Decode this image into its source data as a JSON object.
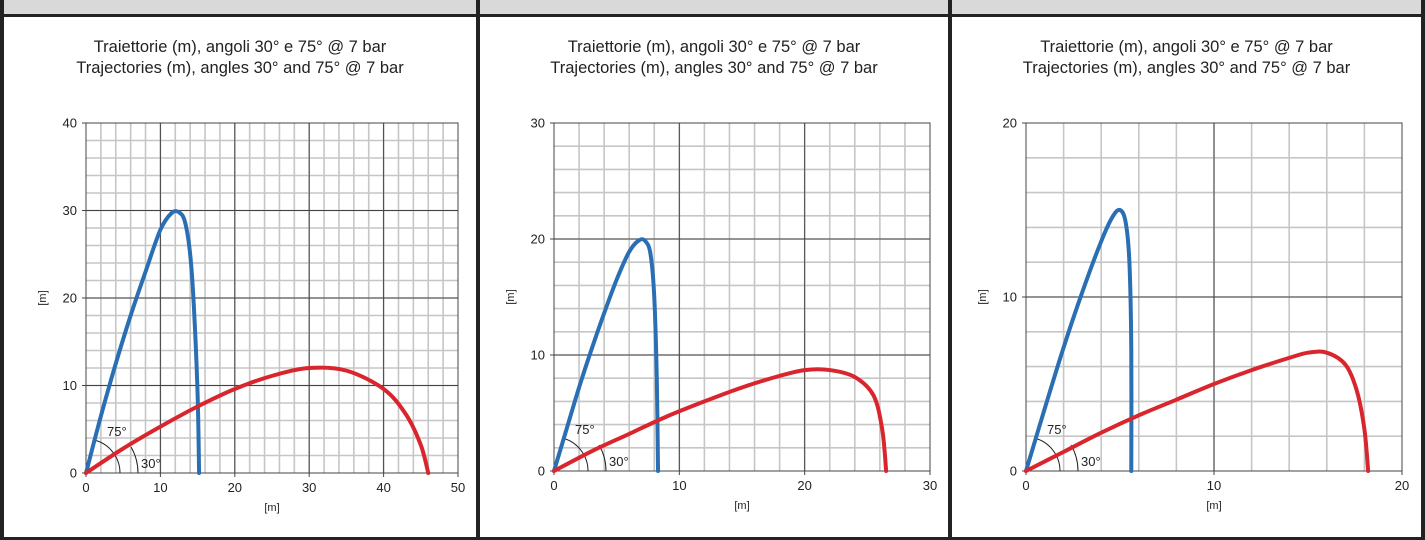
{
  "chart_data": [
    {
      "type": "line",
      "title": "Traiettorie (m), angoli 30° e 75° @ 7 bar",
      "subtitle": "Trajectories (m), angles 30° and 75° @ 7 bar",
      "xlabel": "[m]",
      "ylabel": "[m]",
      "xlim": [
        0,
        50
      ],
      "ylim": [
        0,
        40
      ],
      "xticks": [
        0,
        10,
        20,
        30,
        40,
        50
      ],
      "yticks": [
        0,
        10,
        20,
        30,
        40
      ],
      "minor_grid": [
        2,
        2
      ],
      "legend": "none",
      "angle_labels": [
        "75°",
        "30°"
      ],
      "series": [
        {
          "color": "#2a6fb3",
          "x": [
            0,
            2,
            4,
            6,
            8,
            10,
            11.5,
            12.5,
            13.3,
            14,
            14.5,
            15,
            15.2
          ],
          "y": [
            0,
            6.5,
            12.5,
            18,
            23,
            27.8,
            29.7,
            29.8,
            28.7,
            25,
            19,
            9,
            0
          ]
        },
        {
          "color": "#d9262e",
          "x": [
            0,
            5,
            10,
            15,
            20,
            25,
            30,
            35,
            40,
            43,
            45,
            46
          ],
          "y": [
            0,
            2.8,
            5.3,
            7.6,
            9.6,
            11.1,
            12,
            11.7,
            9.6,
            6.7,
            3.2,
            0
          ]
        }
      ]
    },
    {
      "type": "line",
      "title": "Traiettorie (m), angoli 30° e 75° @ 7 bar",
      "subtitle": "Trajectories (m), angles 30° and 75° @ 7 bar",
      "xlabel": "[m]",
      "ylabel": "[m]",
      "xlim": [
        0,
        30
      ],
      "ylim": [
        0,
        30
      ],
      "xticks": [
        0,
        10,
        20,
        30
      ],
      "yticks": [
        0,
        10,
        20,
        30
      ],
      "minor_grid": [
        2,
        2
      ],
      "legend": "none",
      "angle_labels": [
        "75°",
        "30°"
      ],
      "series": [
        {
          "color": "#2a6fb3",
          "x": [
            0,
            1,
            2,
            3,
            4,
            5,
            6,
            6.8,
            7.3,
            7.7,
            8,
            8.2,
            8.3
          ],
          "y": [
            0,
            3.6,
            7.2,
            10.5,
            13.6,
            16.5,
            18.9,
            19.9,
            19.8,
            18.7,
            15,
            8,
            0
          ]
        },
        {
          "color": "#d9262e",
          "x": [
            0,
            3,
            6,
            9,
            12,
            15,
            18,
            20,
            22,
            24,
            25.5,
            26.2,
            26.5
          ],
          "y": [
            0,
            1.7,
            3.2,
            4.7,
            6.0,
            7.2,
            8.2,
            8.7,
            8.7,
            8.1,
            6.5,
            3.5,
            0
          ]
        }
      ]
    },
    {
      "type": "line",
      "title": "Traiettorie (m), angoli 30° e 75° @ 7 bar",
      "subtitle": "Trajectories (m), angles 30° and 75° @ 7 bar",
      "xlabel": "[m]",
      "ylabel": "[m]",
      "xlim": [
        0,
        20
      ],
      "ylim": [
        0,
        20
      ],
      "xticks": [
        0,
        10,
        20
      ],
      "yticks": [
        0,
        10,
        20
      ],
      "minor_grid": [
        2,
        2
      ],
      "legend": "none",
      "angle_labels": [
        "75°",
        "30°"
      ],
      "series": [
        {
          "color": "#2a6fb3",
          "x": [
            0,
            1,
            2,
            3,
            4,
            4.6,
            5,
            5.3,
            5.5,
            5.6,
            5.6
          ],
          "y": [
            0,
            3.6,
            7.1,
            10.3,
            13.2,
            14.6,
            15.0,
            14.3,
            12,
            7,
            0
          ]
        },
        {
          "color": "#d9262e",
          "x": [
            0,
            2,
            4,
            6,
            8,
            10,
            12,
            14,
            15,
            16,
            17,
            17.6,
            18,
            18.2
          ],
          "y": [
            0,
            1.1,
            2.2,
            3.2,
            4.1,
            5.0,
            5.8,
            6.5,
            6.8,
            6.8,
            6.1,
            4.6,
            2.4,
            0
          ]
        }
      ]
    }
  ]
}
